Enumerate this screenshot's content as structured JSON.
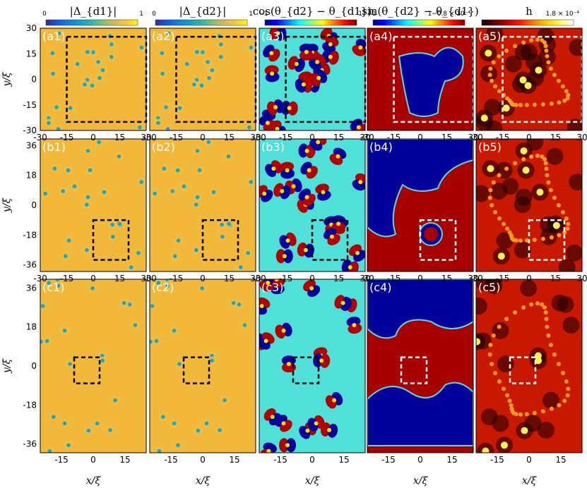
{
  "chart_data": {
    "type": "heatmap",
    "colorbars": [
      {
        "title": "|Δ_{d1}|",
        "min_label": "0",
        "max_label": "1",
        "colormap": "parula"
      },
      {
        "title": "|Δ_{d2}|",
        "min_label": "0",
        "max_label": "1",
        "colormap": "parula"
      },
      {
        "title": "cos(θ_{d2} − θ_{d1})",
        "min_label": "−1",
        "max_label": "1",
        "colormap": "jet"
      },
      {
        "title": "sin(θ_{d2} − θ_{d1})",
        "min_label": "−1",
        "max_label": "1−0.8 × 10⁻⁴",
        "colormap": "jet"
      },
      {
        "title": "h",
        "min_label": "",
        "max_label": "1.8 × 10⁻⁴",
        "colormap": "hot"
      }
    ],
    "rows": [
      {
        "panels": [
          "(a1)",
          "(a2)",
          "(a3)",
          "(a4)",
          "(a5)"
        ],
        "xlim": [
          -30,
          30
        ],
        "ylim": [
          -30,
          30
        ],
        "yticks": [
          "30",
          "15",
          "0",
          "-15",
          "-30"
        ],
        "xticks": [
          "-30",
          "-15",
          "0",
          "15",
          "30"
        ],
        "box": {
          "x": [
            -15,
            30
          ],
          "y": [
            -25,
            25
          ]
        }
      },
      {
        "panels": [
          "(b1)",
          "(b2)",
          "(b3)",
          "(b4)",
          "(b5)"
        ],
        "xlim": [
          -30,
          30
        ],
        "ylim": [
          -40,
          40
        ],
        "yticks": [
          "36",
          "18",
          "0",
          "-18",
          "-36"
        ],
        "xticks": [
          "-30",
          "-15",
          "0",
          "15",
          "30"
        ],
        "box": {
          "x": [
            0,
            20
          ],
          "y": [
            -33,
            -9
          ]
        }
      },
      {
        "panels": [
          "(c1)",
          "(c2)",
          "(c3)",
          "(c4)",
          "(c5)"
        ],
        "xlim": [
          -25,
          25
        ],
        "ylim": [
          -40,
          40
        ],
        "yticks": [
          "36",
          "18",
          "0",
          "-18",
          "-36"
        ],
        "xticks": [
          "-15",
          "0",
          "15"
        ],
        "box": {
          "x": [
            -9,
            3
          ],
          "y": [
            -8,
            4
          ]
        }
      }
    ],
    "xlabel": "x/ξ",
    "ylabel": "y/ξ"
  },
  "colors": {
    "parula_bg": "#f2b83a",
    "parula_dot": "#1ba6c8",
    "jet_red": "#a80000",
    "jet_blue": "#00009a",
    "jet_cyan": "#4fe0d8",
    "hot_red": "#c81800",
    "hot_yellow": "#fff25a",
    "hot_black": "#1a0000"
  }
}
